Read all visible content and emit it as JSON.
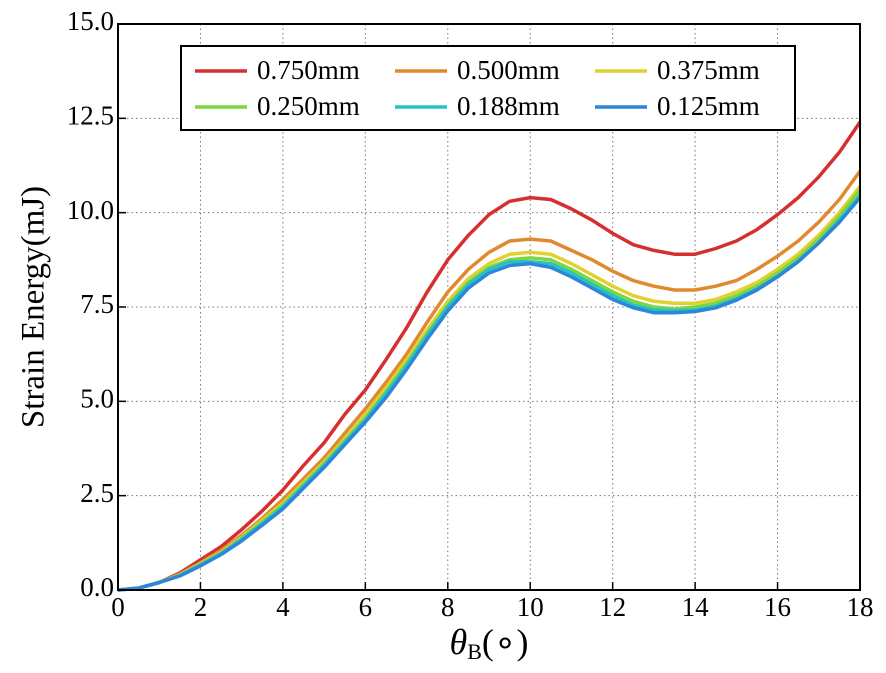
{
  "chart_data": {
    "type": "line",
    "ylabel": "Strain Energy(mJ)",
    "xlabel": {
      "symbol": "θ",
      "subscript": "B",
      "unit": "(∘)"
    },
    "xlim": [
      0,
      18
    ],
    "ylim": [
      0,
      15
    ],
    "xticks": [
      0,
      2,
      4,
      6,
      8,
      10,
      12,
      14,
      16,
      18
    ],
    "yticks": [
      {
        "value": 0,
        "label": "0.0"
      },
      2.5,
      {
        "value": 5,
        "label": "5.0"
      },
      7.5,
      {
        "value": 10,
        "label": "10.0"
      },
      12.5,
      {
        "value": 15,
        "label": "15.0"
      }
    ],
    "grid": true,
    "legend": "top",
    "x": [
      0,
      0.5,
      1,
      1.5,
      2,
      2.5,
      3,
      3.5,
      4,
      4.5,
      5,
      5.5,
      6,
      6.5,
      7,
      7.5,
      8,
      8.5,
      9,
      9.5,
      10,
      10.5,
      11,
      11.5,
      12,
      12.5,
      13,
      13.5,
      14,
      14.5,
      15,
      15.5,
      16,
      16.5,
      17,
      17.5,
      18
    ],
    "series": [
      {
        "name": "0.750mm",
        "color": "#d62f2f",
        "values": [
          0,
          0.05,
          0.2,
          0.45,
          0.8,
          1.15,
          1.6,
          2.1,
          2.65,
          3.3,
          3.9,
          4.65,
          5.3,
          6.1,
          6.95,
          7.9,
          8.75,
          9.4,
          9.95,
          10.3,
          10.4,
          10.35,
          10.1,
          9.8,
          9.45,
          9.15,
          9.0,
          8.9,
          8.9,
          9.05,
          9.25,
          9.55,
          9.95,
          10.4,
          10.95,
          11.6,
          12.4
        ]
      },
      {
        "name": "0.500mm",
        "color": "#e08a30",
        "values": [
          0,
          0.05,
          0.2,
          0.42,
          0.72,
          1.05,
          1.45,
          1.9,
          2.4,
          2.95,
          3.5,
          4.15,
          4.8,
          5.5,
          6.25,
          7.1,
          7.9,
          8.5,
          8.95,
          9.25,
          9.3,
          9.25,
          9.0,
          8.75,
          8.45,
          8.2,
          8.05,
          7.95,
          7.95,
          8.05,
          8.2,
          8.5,
          8.85,
          9.25,
          9.75,
          10.35,
          11.1
        ]
      },
      {
        "name": "0.375mm",
        "color": "#e0d030",
        "values": [
          0,
          0.05,
          0.2,
          0.4,
          0.7,
          1.0,
          1.4,
          1.85,
          2.3,
          2.85,
          3.4,
          4.0,
          4.65,
          5.35,
          6.1,
          6.9,
          7.65,
          8.25,
          8.65,
          8.9,
          8.95,
          8.9,
          8.65,
          8.35,
          8.05,
          7.8,
          7.65,
          7.6,
          7.6,
          7.7,
          7.9,
          8.15,
          8.5,
          8.9,
          9.4,
          10.0,
          10.7
        ]
      },
      {
        "name": "0.250mm",
        "color": "#7dd640",
        "values": [
          0,
          0.05,
          0.2,
          0.39,
          0.68,
          0.98,
          1.37,
          1.8,
          2.25,
          2.8,
          3.35,
          3.95,
          4.55,
          5.25,
          6.0,
          6.8,
          7.55,
          8.15,
          8.55,
          8.75,
          8.8,
          8.75,
          8.5,
          8.2,
          7.9,
          7.65,
          7.5,
          7.45,
          7.5,
          7.6,
          7.8,
          8.05,
          8.4,
          8.8,
          9.3,
          9.9,
          10.6
        ]
      },
      {
        "name": "0.188mm",
        "color": "#25c4c0",
        "values": [
          0,
          0.05,
          0.2,
          0.38,
          0.66,
          0.96,
          1.34,
          1.76,
          2.2,
          2.75,
          3.3,
          3.9,
          4.5,
          5.2,
          5.95,
          6.75,
          7.5,
          8.1,
          8.5,
          8.7,
          8.7,
          8.65,
          8.4,
          8.1,
          7.8,
          7.55,
          7.42,
          7.4,
          7.42,
          7.52,
          7.72,
          7.98,
          8.32,
          8.72,
          9.2,
          9.8,
          10.45
        ]
      },
      {
        "name": "0.125mm",
        "color": "#2e86d8",
        "values": [
          0,
          0.05,
          0.2,
          0.37,
          0.64,
          0.94,
          1.3,
          1.72,
          2.15,
          2.7,
          3.25,
          3.85,
          4.45,
          5.1,
          5.85,
          6.65,
          7.4,
          8.0,
          8.4,
          8.6,
          8.65,
          8.55,
          8.3,
          8.0,
          7.7,
          7.48,
          7.35,
          7.35,
          7.38,
          7.48,
          7.68,
          7.95,
          8.3,
          8.7,
          9.2,
          9.75,
          10.4
        ]
      }
    ]
  }
}
